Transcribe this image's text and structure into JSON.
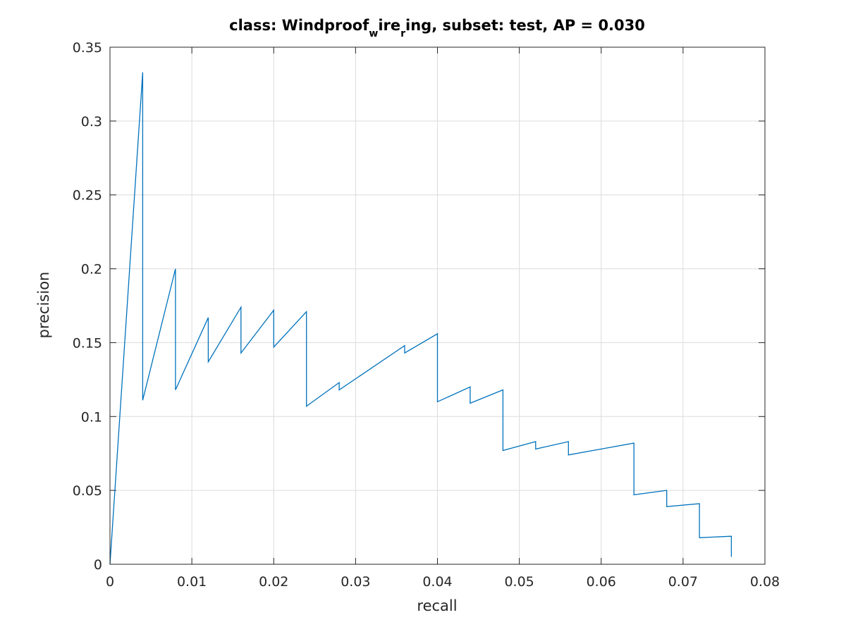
{
  "chart_data": {
    "type": "line",
    "title": {
      "prefix": "class: Windproof",
      "sub1": "w",
      "mid": "ire",
      "sub2": "r",
      "suffix": "ing, subset: test, AP = 0.030"
    },
    "xlabel": "recall",
    "ylabel": "precision",
    "xlim": [
      0,
      0.08
    ],
    "ylim": [
      0,
      0.35
    ],
    "xticks": [
      0,
      0.01,
      0.02,
      0.03,
      0.04,
      0.05,
      0.06,
      0.07,
      0.08
    ],
    "yticks": [
      0,
      0.05,
      0.1,
      0.15,
      0.2,
      0.25,
      0.3,
      0.35
    ],
    "xtick_labels": [
      "0",
      "0.01",
      "0.02",
      "0.03",
      "0.04",
      "0.05",
      "0.06",
      "0.07",
      "0.08"
    ],
    "ytick_labels": [
      "0",
      "0.05",
      "0.1",
      "0.15",
      "0.2",
      "0.25",
      "0.3",
      "0.35"
    ],
    "grid": true,
    "line_color": "#0072bd",
    "series": [
      {
        "x": [
          0,
          0.004,
          0.004,
          0.008,
          0.008,
          0.012,
          0.012,
          0.016,
          0.016,
          0.02,
          0.02,
          0.024,
          0.024,
          0.028,
          0.028,
          0.036,
          0.036,
          0.04,
          0.04,
          0.044,
          0.044,
          0.048,
          0.048,
          0.052,
          0.052,
          0.056,
          0.056,
          0.06,
          0.06,
          0.064,
          0.064,
          0.068,
          0.068,
          0.072,
          0.072,
          0.0759,
          0.0759
        ],
        "y": [
          0,
          0.333,
          0.111,
          0.2,
          0.118,
          0.167,
          0.137,
          0.174,
          0.143,
          0.172,
          0.147,
          0.171,
          0.107,
          0.123,
          0.118,
          0.148,
          0.143,
          0.156,
          0.11,
          0.12,
          0.109,
          0.118,
          0.077,
          0.083,
          0.078,
          0.083,
          0.074,
          0.078,
          0.078,
          0.082,
          0.047,
          0.05,
          0.039,
          0.041,
          0.018,
          0.019,
          0.005
        ]
      }
    ]
  }
}
